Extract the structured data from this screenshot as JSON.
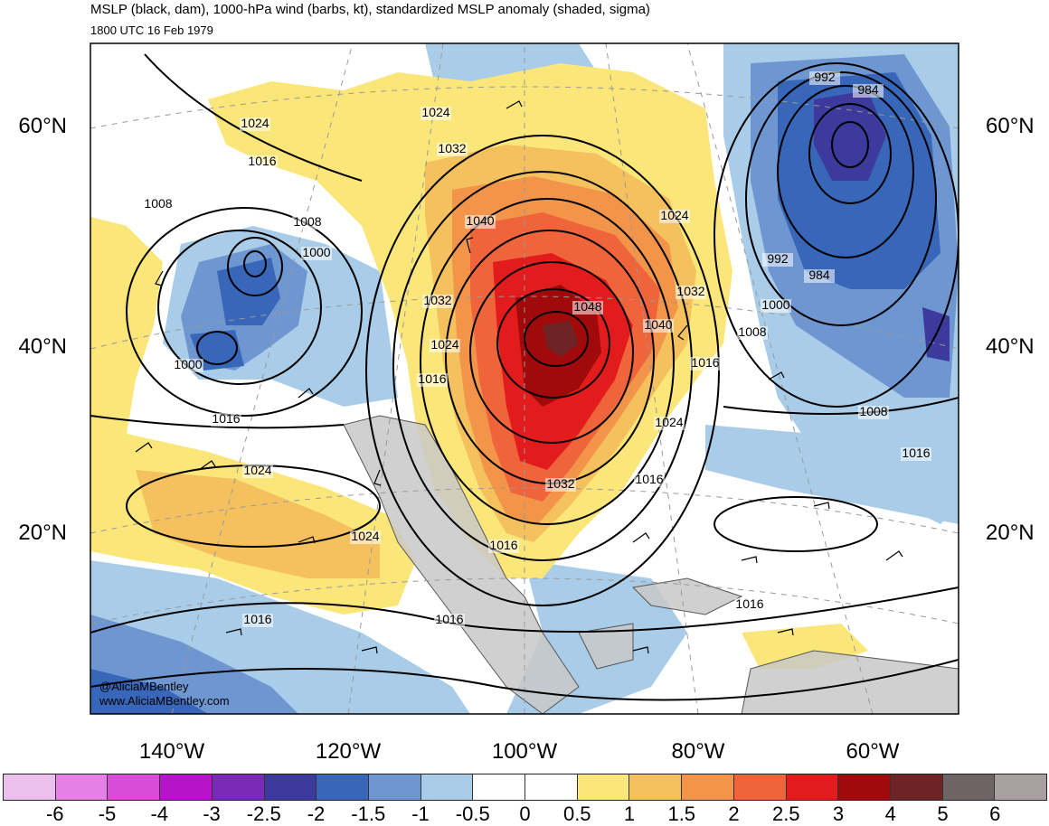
{
  "header": {
    "title": "MSLP (black, dam), 1000-hPa wind (barbs, kt), standardized MSLP anomaly (shaded, sigma)",
    "valid_time": "1800 UTC 16 Feb 1979"
  },
  "axes": {
    "lat_labels": [
      "60°N",
      "40°N",
      "20°N"
    ],
    "lon_labels": [
      "140°W",
      "120°W",
      "100°W",
      "80°W",
      "60°W"
    ]
  },
  "contour_labels": [
    "1024",
    "1016",
    "1008",
    "1008",
    "1000",
    "1000",
    "1016",
    "1016",
    "1024",
    "1024",
    "1024",
    "1032",
    "1040",
    "1032",
    "1024",
    "1048",
    "1040",
    "1032",
    "1024",
    "1032",
    "1016",
    "1016",
    "1016",
    "1008",
    "1000",
    "992",
    "984",
    "992",
    "984",
    "1008",
    "1016",
    "1016",
    "1016",
    "1016",
    "1024"
  ],
  "credits": {
    "handle": "@AliciaMBentley",
    "site": "www.AliciaMBentley.com"
  },
  "colorbar": {
    "labels": [
      "-6",
      "-5",
      "-4",
      "-3",
      "-2.5",
      "-2",
      "-1.5",
      "-1",
      "-0.5",
      "0",
      "0.5",
      "1",
      "1.5",
      "2",
      "2.5",
      "3",
      "4",
      "5",
      "6"
    ],
    "colors": [
      "#ecc0ec",
      "#e680e6",
      "#d84cd8",
      "#b614c8",
      "#7b2ab8",
      "#3d3a9e",
      "#3866b8",
      "#6e96d0",
      "#a9cce8",
      "#ffffff",
      "#ffffff",
      "#fbe67a",
      "#f5c05e",
      "#f2944a",
      "#ef643a",
      "#e21c1c",
      "#a00a0a",
      "#6e2424",
      "#6e6464",
      "#a8a0a0"
    ]
  }
}
